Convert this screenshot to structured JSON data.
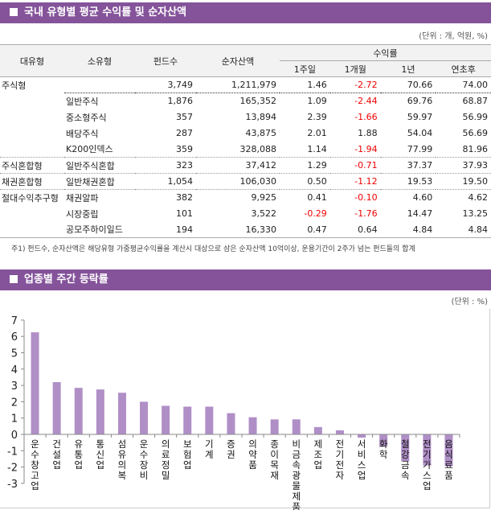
{
  "section1": {
    "title": "국내 유형별 평균 수익률 및 순자산액",
    "unit": "(단위 : 개, 억원, %)",
    "headers": {
      "major": "대유형",
      "minor": "소유형",
      "funds": "펀드수",
      "assets": "순자산액",
      "returns": "수익률",
      "w1": "1주일",
      "m1": "1개월",
      "y1": "1년",
      "ytd": "연초후"
    },
    "rows": [
      {
        "major": "주식형",
        "minor": "",
        "funds": "3,749",
        "assets": "1,211,979",
        "w1": "1.46",
        "m1": "-2.72",
        "y1": "70.66",
        "ytd": "74.00"
      },
      {
        "major": "",
        "minor": "일반주식",
        "funds": "1,876",
        "assets": "165,352",
        "w1": "1.09",
        "m1": "-2.44",
        "y1": "69.76",
        "ytd": "68.87"
      },
      {
        "major": "",
        "minor": "중소형주식",
        "funds": "357",
        "assets": "13,894",
        "w1": "2.39",
        "m1": "-1.66",
        "y1": "59.97",
        "ytd": "56.99"
      },
      {
        "major": "",
        "minor": "배당주식",
        "funds": "287",
        "assets": "43,875",
        "w1": "2.01",
        "m1": "1.88",
        "y1": "54.04",
        "ytd": "56.69"
      },
      {
        "major": "",
        "minor": "K200인덱스",
        "funds": "359",
        "assets": "328,088",
        "w1": "1.14",
        "m1": "-1.94",
        "y1": "77.99",
        "ytd": "81.96"
      },
      {
        "major": "주식혼합형",
        "minor": "일반주식혼합",
        "funds": "323",
        "assets": "37,412",
        "w1": "1.29",
        "m1": "-0.71",
        "y1": "37.37",
        "ytd": "37.93"
      },
      {
        "major": "채권혼합형",
        "minor": "일반채권혼합",
        "funds": "1,054",
        "assets": "106,030",
        "w1": "0.50",
        "m1": "-1.12",
        "y1": "19.53",
        "ytd": "19.50"
      },
      {
        "major": "절대수익추구형",
        "minor": "채권알파",
        "funds": "382",
        "assets": "9,925",
        "w1": "0.41",
        "m1": "-0.10",
        "y1": "4.60",
        "ytd": "4.62"
      },
      {
        "major": "",
        "minor": "시장중립",
        "funds": "101",
        "assets": "3,522",
        "w1": "-0.29",
        "m1": "-1.76",
        "y1": "14.47",
        "ytd": "13.25"
      },
      {
        "major": "",
        "minor": "공모주하이일드",
        "funds": "194",
        "assets": "16,330",
        "w1": "0.47",
        "m1": "0.64",
        "y1": "4.84",
        "ytd": "4.84"
      }
    ],
    "note": "주1) 펀드수, 순자산액은 해당유형 가중평균수익률을 계산시 대상으로 삼은 순자산액 10억이상, 운용기간이 2주가 넘는 펀드들의 합계"
  },
  "section2": {
    "title": "업종별 주간 등락률",
    "unit": "(단위 : %)"
  },
  "colors": {
    "header": "#84539a",
    "bar": "#b08fc7",
    "negative": "#e00000"
  },
  "chart_data": {
    "type": "bar",
    "ylim": [
      -3,
      7
    ],
    "yticks": [
      -3,
      -2,
      -1,
      0,
      1,
      2,
      3,
      4,
      5,
      6,
      7
    ],
    "categories": [
      "운수창고업",
      "건설업",
      "유통업",
      "통신업",
      "섬유의복",
      "운수장비",
      "의료정밀",
      "보험업",
      "기계",
      "증권",
      "의약품",
      "종이목재",
      "비금속광물제품",
      "제조업",
      "전기전자",
      "서비스업",
      "화학",
      "철강금속",
      "전기가스업",
      "음식료품"
    ],
    "values": [
      6.25,
      3.2,
      2.85,
      2.75,
      2.55,
      2.0,
      1.75,
      1.7,
      1.7,
      1.3,
      1.05,
      0.92,
      0.92,
      0.45,
      0.25,
      -0.2,
      -0.75,
      -1.65,
      -1.9,
      -1.95
    ]
  }
}
